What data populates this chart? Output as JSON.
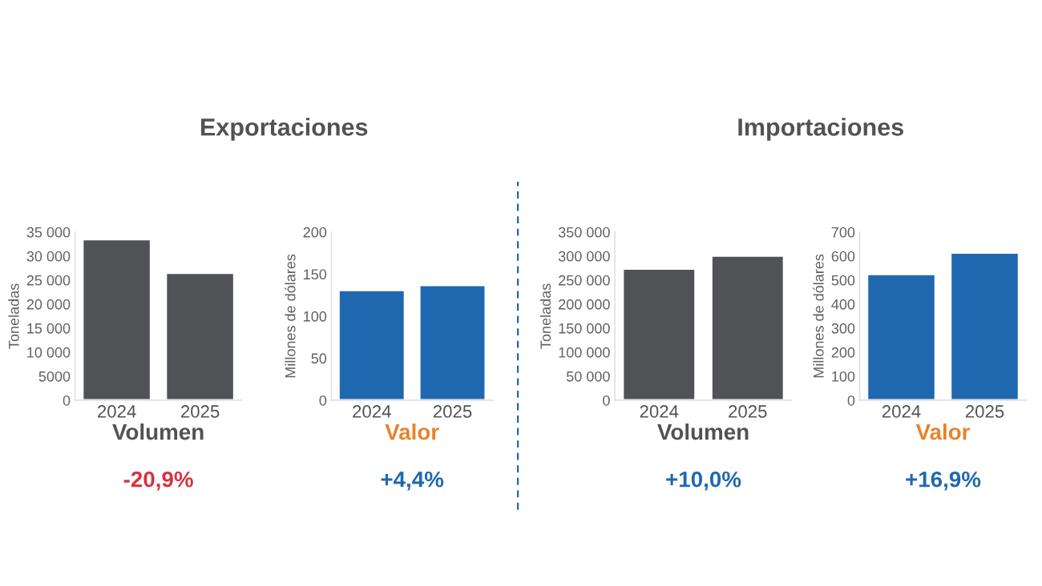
{
  "chart_data": [
    {
      "type": "bar",
      "title": "Exportaciones",
      "categories": [
        "2024",
        "2025"
      ],
      "values": [
        33500,
        26500
      ],
      "color": "#505256",
      "ylabel": "Toneladas",
      "xlabel": "Volumen",
      "ylim": [
        0,
        35000
      ],
      "yticks": [
        0,
        5000,
        {
          "value": 10000,
          "label": "10 000"
        },
        {
          "value": 15000,
          "label": "15 000"
        },
        {
          "value": 20000,
          "label": "20 000"
        },
        {
          "value": 25000,
          "label": "25 000"
        },
        {
          "value": 30000,
          "label": "30 000"
        },
        {
          "value": 35000,
          "label": "35 000"
        }
      ],
      "annotations": [
        "-20,9%"
      ],
      "grid": false,
      "legend": false
    },
    {
      "type": "bar",
      "categories": [
        "2024",
        "2025"
      ],
      "values": [
        131,
        137
      ],
      "color": "#1f68b0",
      "ylabel": "Millones de dólares",
      "xlabel": "Valor",
      "ylim": [
        0,
        200
      ],
      "yticks": [
        0,
        50,
        100,
        150,
        200
      ],
      "annotations": [
        "+4,4%"
      ],
      "grid": false,
      "legend": false
    },
    {
      "type": "bar",
      "title": "Importaciones",
      "categories": [
        "2024",
        "2025"
      ],
      "values": [
        274000,
        301000
      ],
      "color": "#505256",
      "ylabel": "Toneladas",
      "xlabel": "Volumen",
      "ylim": [
        0,
        350000
      ],
      "yticks": [
        0,
        {
          "value": 50000,
          "label": "50 000"
        },
        {
          "value": 100000,
          "label": "100 000"
        },
        {
          "value": 150000,
          "label": "150 000"
        },
        {
          "value": 200000,
          "label": "200 000"
        },
        {
          "value": 250000,
          "label": "250 000"
        },
        {
          "value": 300000,
          "label": "300 000"
        },
        {
          "value": 350000,
          "label": "350 000"
        }
      ],
      "annotations": [
        "+10,0%"
      ],
      "grid": false,
      "legend": false
    },
    {
      "type": "bar",
      "categories": [
        "2024",
        "2025"
      ],
      "values": [
        525,
        614
      ],
      "color": "#1f68b0",
      "ylabel": "Millones de dólares",
      "xlabel": "Valor",
      "ylim": [
        0,
        700
      ],
      "yticks": [
        0,
        100,
        200,
        300,
        400,
        500,
        600,
        700
      ],
      "annotations": [
        "+16,9%"
      ],
      "grid": false,
      "legend": false
    }
  ]
}
